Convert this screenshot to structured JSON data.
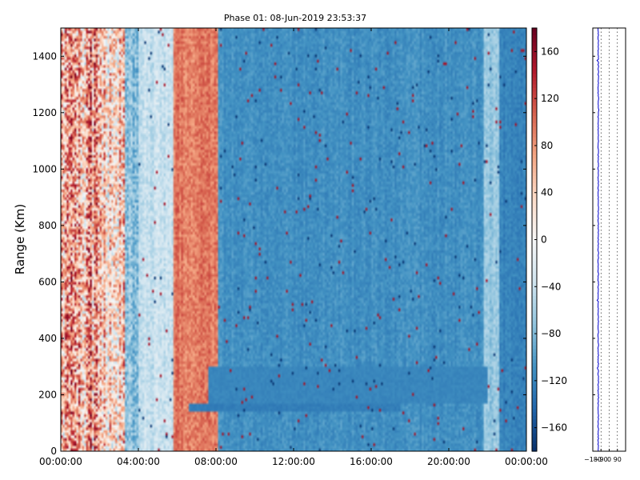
{
  "chart_data": [
    {
      "type": "heatmap",
      "title": "Phase 01: 08-Jun-2019 23:53:37",
      "xlabel": "",
      "ylabel": "Range (Km)",
      "x_ticks": [
        "00:00:00",
        "04:00:00",
        "08:00:00",
        "12:00:00",
        "16:00:00",
        "20:00:00",
        "00:00:00"
      ],
      "x_range_hours": [
        0,
        24
      ],
      "y_ticks": [
        0,
        200,
        400,
        600,
        800,
        1000,
        1200,
        1400
      ],
      "ylim": [
        0,
        1500
      ],
      "colorbar": {
        "ticks": [
          160,
          120,
          80,
          40,
          0,
          -40,
          -80,
          -120,
          -160
        ],
        "range": [
          -180,
          180
        ],
        "colormap": [
          "#08306b",
          "#2166ac",
          "#4393c3",
          "#92c5de",
          "#d1e5f0",
          "#f7f7f7",
          "#fddbc7",
          "#f4a582",
          "#d6604d",
          "#b2182b",
          "#67001f"
        ]
      },
      "phase_bands": [
        {
          "from_h": 0.0,
          "to_h": 2.0,
          "mean": 60,
          "spread": 170
        },
        {
          "from_h": 2.0,
          "to_h": 3.3,
          "mean": 40,
          "spread": 150
        },
        {
          "from_h": 3.3,
          "to_h": 4.0,
          "mean": -70,
          "spread": 60
        },
        {
          "from_h": 4.0,
          "to_h": 5.8,
          "mean": -40,
          "spread": 35
        },
        {
          "from_h": 5.8,
          "to_h": 8.1,
          "mean": 95,
          "spread": 40
        },
        {
          "from_h": 8.1,
          "to_h": 21.8,
          "mean": -110,
          "spread": 22
        },
        {
          "from_h": 21.8,
          "to_h": 22.6,
          "mean": -70,
          "spread": 30
        },
        {
          "from_h": 22.6,
          "to_h": 24.0,
          "mean": -120,
          "spread": 20
        }
      ],
      "echo_layers": [
        {
          "from_h": 6.6,
          "to_h": 17.5,
          "range_km": [
            140,
            170
          ],
          "value": -125
        },
        {
          "from_h": 7.6,
          "to_h": 22.0,
          "range_km": [
            170,
            300
          ],
          "value": -118
        }
      ]
    },
    {
      "type": "line",
      "x_ticks": [
        "-180",
        "-90",
        "0",
        "90"
      ],
      "xlim": [
        -180,
        180
      ],
      "ylim": [
        0,
        1500
      ],
      "grid_lines_x": [
        -90,
        0,
        90
      ],
      "line_color": "#0000cc",
      "mean_value": -120
    }
  ]
}
